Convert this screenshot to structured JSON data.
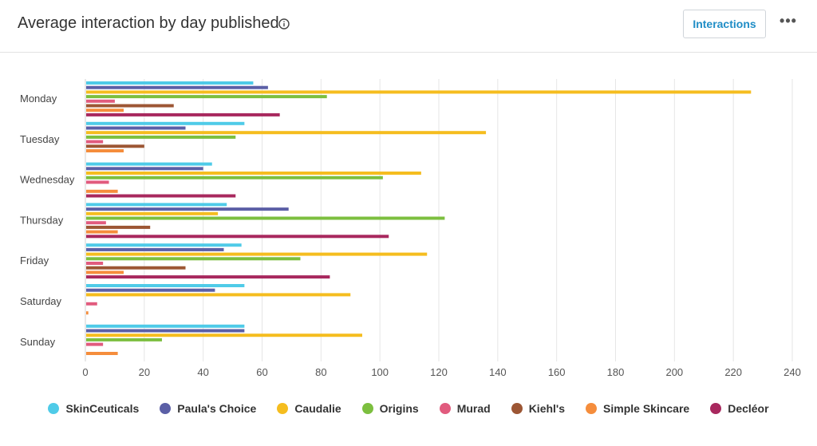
{
  "header": {
    "title": "Average interaction by day published",
    "info_icon": "info-circle-icon",
    "button_label": "Interactions",
    "more_icon": "more-horizontal-icon",
    "more_glyph": "•••"
  },
  "chart_data": {
    "type": "bar",
    "orientation": "horizontal",
    "categories": [
      "Monday",
      "Tuesday",
      "Wednesday",
      "Thursday",
      "Friday",
      "Saturday",
      "Sunday"
    ],
    "xlim": [
      0,
      240
    ],
    "xticks": [
      0,
      20,
      40,
      60,
      80,
      100,
      120,
      140,
      160,
      180,
      200,
      220,
      240
    ],
    "grid": "vertical",
    "legend_position": "bottom",
    "series": [
      {
        "name": "SkinCeuticals",
        "color": "#4fcbe8",
        "values": [
          57,
          54,
          43,
          48,
          53,
          54,
          54
        ]
      },
      {
        "name": "Paula's Choice",
        "color": "#5b5fa6",
        "values": [
          62,
          34,
          40,
          69,
          47,
          44,
          54
        ]
      },
      {
        "name": "Caudalie",
        "color": "#f5bd1f",
        "values": [
          226,
          136,
          114,
          45,
          116,
          90,
          94
        ]
      },
      {
        "name": "Origins",
        "color": "#7cbf3f",
        "values": [
          82,
          51,
          101,
          122,
          73,
          0,
          26
        ]
      },
      {
        "name": "Murad",
        "color": "#e15b7e",
        "values": [
          10,
          6,
          8,
          7,
          6,
          4,
          6
        ]
      },
      {
        "name": "Kiehl's",
        "color": "#9c5634",
        "values": [
          30,
          20,
          0,
          22,
          34,
          0,
          0
        ]
      },
      {
        "name": "Simple Skincare",
        "color": "#f58d3c",
        "values": [
          13,
          13,
          11,
          11,
          13,
          1,
          11
        ]
      },
      {
        "name": "Decléor",
        "color": "#a8285e",
        "values": [
          66,
          0,
          51,
          103,
          83,
          0,
          0
        ]
      }
    ]
  }
}
